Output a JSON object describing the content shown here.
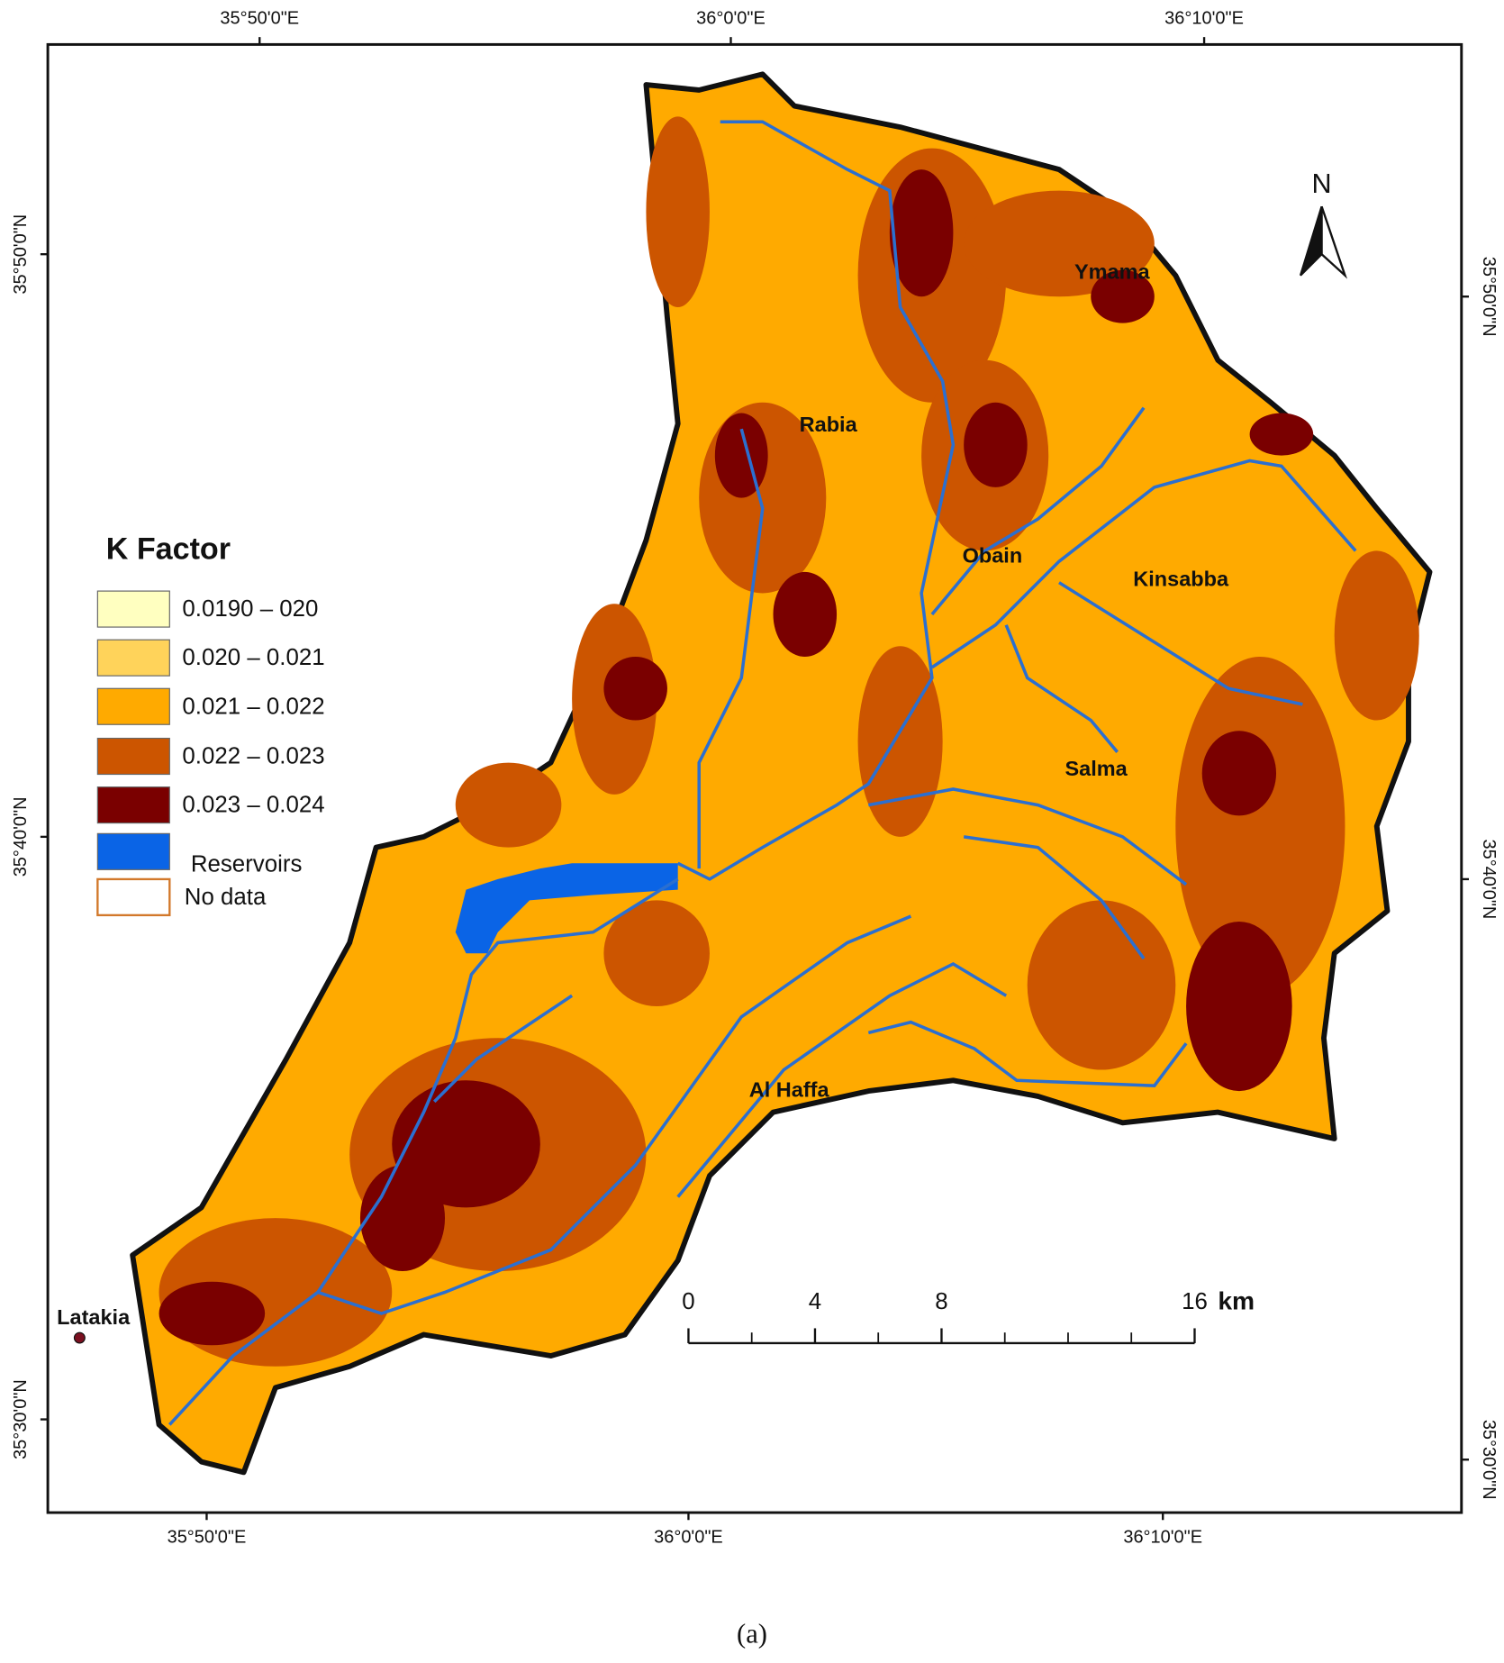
{
  "map": {
    "top_labels": [
      "35°50'0\"E",
      "36°0'0\"E",
      "36°10'0\"E"
    ],
    "bottom_labels": [
      "35°50'0\"E",
      "36°0'0\"E",
      "36°10'0\"E"
    ],
    "left_labels": [
      "35°50'0\"N",
      "35°40'0\"N",
      "35°30'0\"N"
    ],
    "right_labels": [
      "35°50'0\"N",
      "35°40'0\"N",
      "35°30'0\"N"
    ],
    "legend": {
      "title": "K Factor",
      "items": [
        {
          "label": "0.0190 – 020",
          "color": "#ffffc0"
        },
        {
          "label": "0.020 – 0.021",
          "color": "#ffd35a"
        },
        {
          "label": "0.021 – 0.022",
          "color": "#ffaa00"
        },
        {
          "label": "0.022 – 0.023",
          "color": "#cc5500"
        },
        {
          "label": "0.023 – 0.024",
          "color": "#7a0000"
        },
        {
          "label": "Reservoirs",
          "color": "#0a64e6"
        },
        {
          "label": "No data",
          "color": "#ffffff"
        }
      ]
    },
    "places": [
      "Ymama",
      "Rabia",
      "Obain",
      "Kinsabba",
      "Salma",
      "Al Haffa",
      "Latakia"
    ],
    "north": "N",
    "scale_bar": {
      "ticks": [
        0,
        4,
        8,
        16
      ],
      "unit": "km"
    },
    "caption": "(a)"
  }
}
